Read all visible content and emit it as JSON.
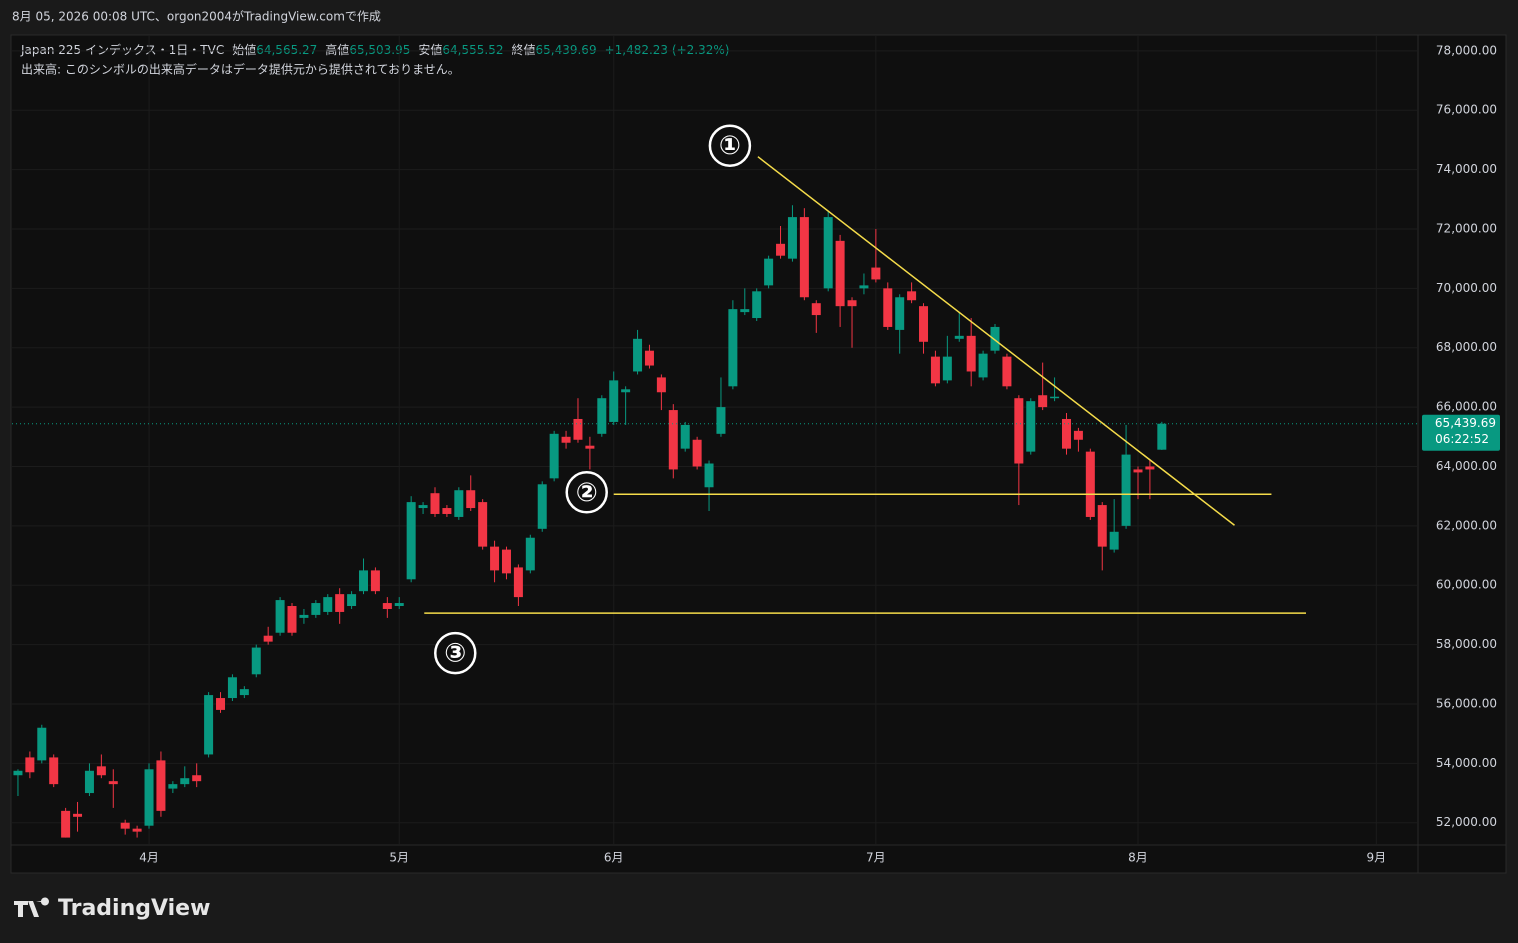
{
  "header": {
    "caption": "8月 05, 2026 00:08 UTC、orgon2004がTradingView.comで作成",
    "logo": "TradingView"
  },
  "chart_data": {
    "type": "candlestick",
    "legend": {
      "symbol": "Japan 225 インデックス・1日・TVC",
      "open_label": "始値",
      "open": "64,565.27",
      "high_label": "高値",
      "high": "65,503.95",
      "low_label": "安値",
      "low": "64,555.52",
      "close_label": "終値",
      "close": "65,439.69",
      "change": "+1,482.23 (+2.32%)",
      "volume_note": "出来高: このシンボルの出来高データはデータ提供元から提供されておりません。"
    },
    "up_color": "#089981",
    "down_color": "#f23645",
    "open": [
      53600,
      54200,
      54100,
      54200,
      52400,
      52300,
      53000,
      53900,
      53400,
      52000,
      51800,
      51900,
      54100,
      53150,
      53300,
      53600,
      54300,
      56200,
      56200,
      56300,
      57000,
      58300,
      58400,
      59300,
      58900,
      59000,
      59100,
      59700,
      59300,
      59800,
      60500,
      59400,
      59300,
      60200,
      62600,
      63100,
      62600,
      62300,
      63200,
      62800,
      61300,
      61200,
      60600,
      60500,
      61900,
      63600,
      65000,
      65600,
      64700,
      65100,
      65500,
      66500,
      67200,
      67900,
      67000,
      65900,
      64600,
      64900,
      63300,
      65100,
      66700,
      69200,
      69000,
      70100,
      71500,
      71000,
      72400,
      69500,
      70000,
      71600,
      69600,
      70000,
      70700,
      70000,
      68600,
      69900,
      69400,
      67700,
      66900,
      68300,
      68400,
      67000,
      67900,
      67700,
      66300,
      64500,
      66400,
      66300,
      65600,
      65200,
      64500,
      62700,
      61200,
      62000,
      63900,
      64000,
      64565.27
    ],
    "high": [
      53800,
      54400,
      55300,
      54300,
      52500,
      52700,
      54000,
      54300,
      53800,
      52100,
      51900,
      54000,
      54400,
      53400,
      53900,
      54000,
      56400,
      56400,
      57000,
      56600,
      58000,
      58600,
      59600,
      59400,
      59200,
      59500,
      59700,
      59900,
      59800,
      60900,
      60600,
      59600,
      59600,
      63000,
      62800,
      63300,
      62700,
      63300,
      63700,
      62900,
      61500,
      61300,
      60700,
      61700,
      63500,
      65200,
      65200,
      66300,
      65000,
      66400,
      67200,
      66700,
      68600,
      68100,
      67100,
      66100,
      65500,
      65000,
      64200,
      67000,
      69600,
      70000,
      70000,
      71100,
      72100,
      72800,
      72700,
      69600,
      72600,
      71800,
      69700,
      70500,
      72000,
      70200,
      69800,
      70200,
      69500,
      67900,
      68400,
      69200,
      69000,
      67900,
      68800,
      67800,
      66400,
      66300,
      67500,
      67000,
      65800,
      65300,
      64600,
      62800,
      62900,
      65400,
      64000,
      64200,
      65503.95
    ],
    "low": [
      52900,
      53500,
      54000,
      53200,
      51500,
      51700,
      52900,
      53500,
      52500,
      51600,
      51500,
      51800,
      52200,
      53000,
      53200,
      53200,
      54200,
      55700,
      56100,
      56200,
      56900,
      58000,
      58300,
      58300,
      58700,
      58900,
      59000,
      58700,
      59200,
      59700,
      59700,
      58900,
      59200,
      60100,
      62400,
      62300,
      62300,
      62200,
      62500,
      61200,
      60100,
      60200,
      59300,
      60400,
      61800,
      63500,
      64600,
      64800,
      63900,
      65000,
      65400,
      65400,
      67100,
      67300,
      65900,
      63600,
      64500,
      63900,
      62500,
      65000,
      66600,
      69100,
      68900,
      70000,
      71000,
      70900,
      69600,
      68500,
      69900,
      68700,
      68000,
      69800,
      70200,
      68600,
      67800,
      69500,
      67800,
      66700,
      66800,
      68200,
      66700,
      66900,
      67800,
      66600,
      62700,
      64400,
      65900,
      66200,
      64400,
      64500,
      62200,
      60500,
      61100,
      61900,
      62900,
      62900,
      64555.52
    ],
    "close": [
      53750,
      53700,
      55200,
      53300,
      51500,
      52200,
      53750,
      53600,
      53300,
      51800,
      51700,
      53800,
      52400,
      53300,
      53500,
      53400,
      56300,
      55800,
      56900,
      56500,
      57900,
      58100,
      59500,
      58400,
      59000,
      59400,
      59600,
      59100,
      59700,
      60500,
      59800,
      59200,
      59400,
      62800,
      62700,
      62400,
      62400,
      63200,
      62600,
      61300,
      60500,
      60400,
      59600,
      61600,
      63400,
      65100,
      64800,
      64900,
      64600,
      66300,
      66900,
      66600,
      68300,
      67400,
      66500,
      63900,
      65400,
      64000,
      64100,
      66000,
      69300,
      69300,
      69900,
      71000,
      71100,
      72400,
      69700,
      69100,
      72400,
      69400,
      69400,
      70100,
      70300,
      68700,
      69700,
      69600,
      68200,
      66800,
      67700,
      68400,
      67200,
      67800,
      68700,
      66700,
      64100,
      66200,
      66000,
      66350,
      64600,
      64900,
      62300,
      61300,
      61800,
      64400,
      63800,
      63900,
      65439.69
    ],
    "xlim": [
      -0.5,
      117.5
    ],
    "xticks": [
      {
        "value": 11,
        "label": "4月"
      },
      {
        "value": 32,
        "label": "5月"
      },
      {
        "value": 50,
        "label": "6月"
      },
      {
        "value": 72,
        "label": "7月"
      },
      {
        "value": 94,
        "label": "8月"
      },
      {
        "value": 114,
        "label": "9月"
      }
    ],
    "ylim": [
      51250,
      78500
    ],
    "yticks": [
      {
        "value": 52000,
        "label": "52,000.00"
      },
      {
        "value": 54000,
        "label": "54,000.00"
      },
      {
        "value": 56000,
        "label": "56,000.00"
      },
      {
        "value": 58000,
        "label": "58,000.00"
      },
      {
        "value": 60000,
        "label": "60,000.00"
      },
      {
        "value": 62000,
        "label": "62,000.00"
      },
      {
        "value": 64000,
        "label": "64,000.00"
      },
      {
        "value": 66000,
        "label": "66,000.00"
      },
      {
        "value": 68000,
        "label": "68,000.00"
      },
      {
        "value": 70000,
        "label": "70,000.00"
      },
      {
        "value": 72000,
        "label": "72,000.00"
      },
      {
        "value": 74000,
        "label": "74,000.00"
      },
      {
        "value": 76000,
        "label": "76,000.00"
      },
      {
        "value": 78000,
        "label": "78,000.00"
      }
    ],
    "grid": true,
    "last_price": {
      "value": 65439.69,
      "label": "65,439.69"
    },
    "countdown": "06:22:52",
    "annotation_color": "#f5dc4a",
    "annotations": [
      {
        "label": "①",
        "x": [
          62.1,
          102.1
        ],
        "y": [
          74434,
          62020
        ]
      },
      {
        "label": "②",
        "x": [
          50,
          105.2
        ],
        "y": [
          63063,
          63063
        ]
      },
      {
        "label": "③",
        "x": [
          34.1,
          108.1
        ],
        "y": [
          59060,
          59060
        ]
      }
    ]
  }
}
